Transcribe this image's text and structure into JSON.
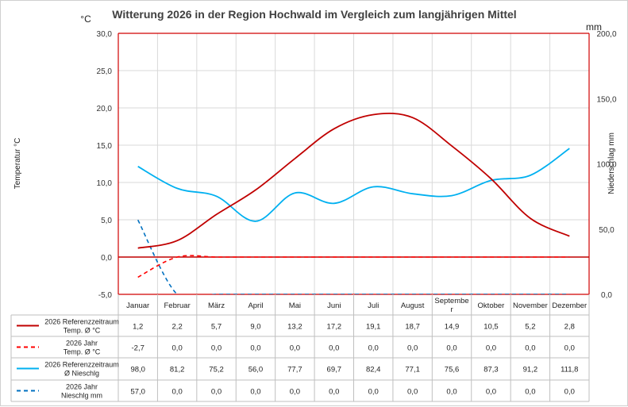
{
  "chart_data": {
    "type": "line",
    "title": "Witterung 2026 in der Region Hochwald im Vergleich zum langjährigen Mittel",
    "left_unit": "°C",
    "right_unit": "mm",
    "ylabel": "Temperatur °C",
    "y2label": "Niederschlag mm",
    "ylim": [
      -5,
      30
    ],
    "y2lim": [
      0,
      200
    ],
    "yticks": [
      "-5,0",
      "0,0",
      "5,0",
      "10,0",
      "15,0",
      "20,0",
      "25,0",
      "30,0"
    ],
    "y2ticks": [
      "0,0",
      "50,0",
      "100,0",
      "150,0",
      "200,0"
    ],
    "categories": [
      "Januar",
      "Februar",
      "März",
      "April",
      "Mai",
      "Juni",
      "Juli",
      "August",
      "Septembe r",
      "Oktober",
      "November",
      "Dezember"
    ],
    "series": [
      {
        "name": "2026 Referenzzeitraum Temp. Ø °C",
        "legend_lines": [
          "2026 Referenzzeitraum",
          "Temp. Ø °C"
        ],
        "axis": "left",
        "color": "#c00000",
        "style": "solid",
        "values": [
          1.2,
          2.2,
          5.7,
          9.0,
          13.2,
          17.2,
          19.1,
          18.7,
          14.9,
          10.5,
          5.2,
          2.8
        ],
        "labels": [
          "1,2",
          "2,2",
          "5,7",
          "9,0",
          "13,2",
          "17,2",
          "19,1",
          "18,7",
          "14,9",
          "10,5",
          "5,2",
          "2,8"
        ]
      },
      {
        "name": "2026 Jahr Temp. Ø °C",
        "legend_lines": [
          "2026 Jahr",
          "Temp. Ø °C"
        ],
        "axis": "left",
        "color": "#ff0000",
        "style": "dashed",
        "values": [
          -2.7,
          0.0,
          0.0,
          0.0,
          0.0,
          0.0,
          0.0,
          0.0,
          0.0,
          0.0,
          0.0,
          0.0
        ],
        "labels": [
          "-2,7",
          "0,0",
          "0,0",
          "0,0",
          "0,0",
          "0,0",
          "0,0",
          "0,0",
          "0,0",
          "0,0",
          "0,0",
          "0,0"
        ]
      },
      {
        "name": "2026 Referenzzeitraum Ø Nieschlg",
        "legend_lines": [
          "2026 Referenzzeitraum",
          "Ø Nieschlg"
        ],
        "axis": "right",
        "color": "#00b0f0",
        "style": "solid",
        "values": [
          98.0,
          81.2,
          75.2,
          56.0,
          77.7,
          69.7,
          82.4,
          77.1,
          75.6,
          87.3,
          91.2,
          111.8
        ],
        "labels": [
          "98,0",
          "81,2",
          "75,2",
          "56,0",
          "77,7",
          "69,7",
          "82,4",
          "77,1",
          "75,6",
          "87,3",
          "91,2",
          "111,8"
        ]
      },
      {
        "name": "2026 Jahr Nieschlg mm",
        "legend_lines": [
          "2026 Jahr",
          "Nieschlg mm"
        ],
        "axis": "right",
        "color": "#0070c0",
        "style": "dashed",
        "values": [
          57.0,
          0.0,
          0.0,
          0.0,
          0.0,
          0.0,
          0.0,
          0.0,
          0.0,
          0.0,
          0.0,
          0.0
        ],
        "labels": [
          "57,0",
          "0,0",
          "0,0",
          "0,0",
          "0,0",
          "0,0",
          "0,0",
          "0,0",
          "0,0",
          "0,0",
          "0,0",
          "0,0"
        ]
      }
    ],
    "grid": true,
    "legend": "data-table"
  }
}
